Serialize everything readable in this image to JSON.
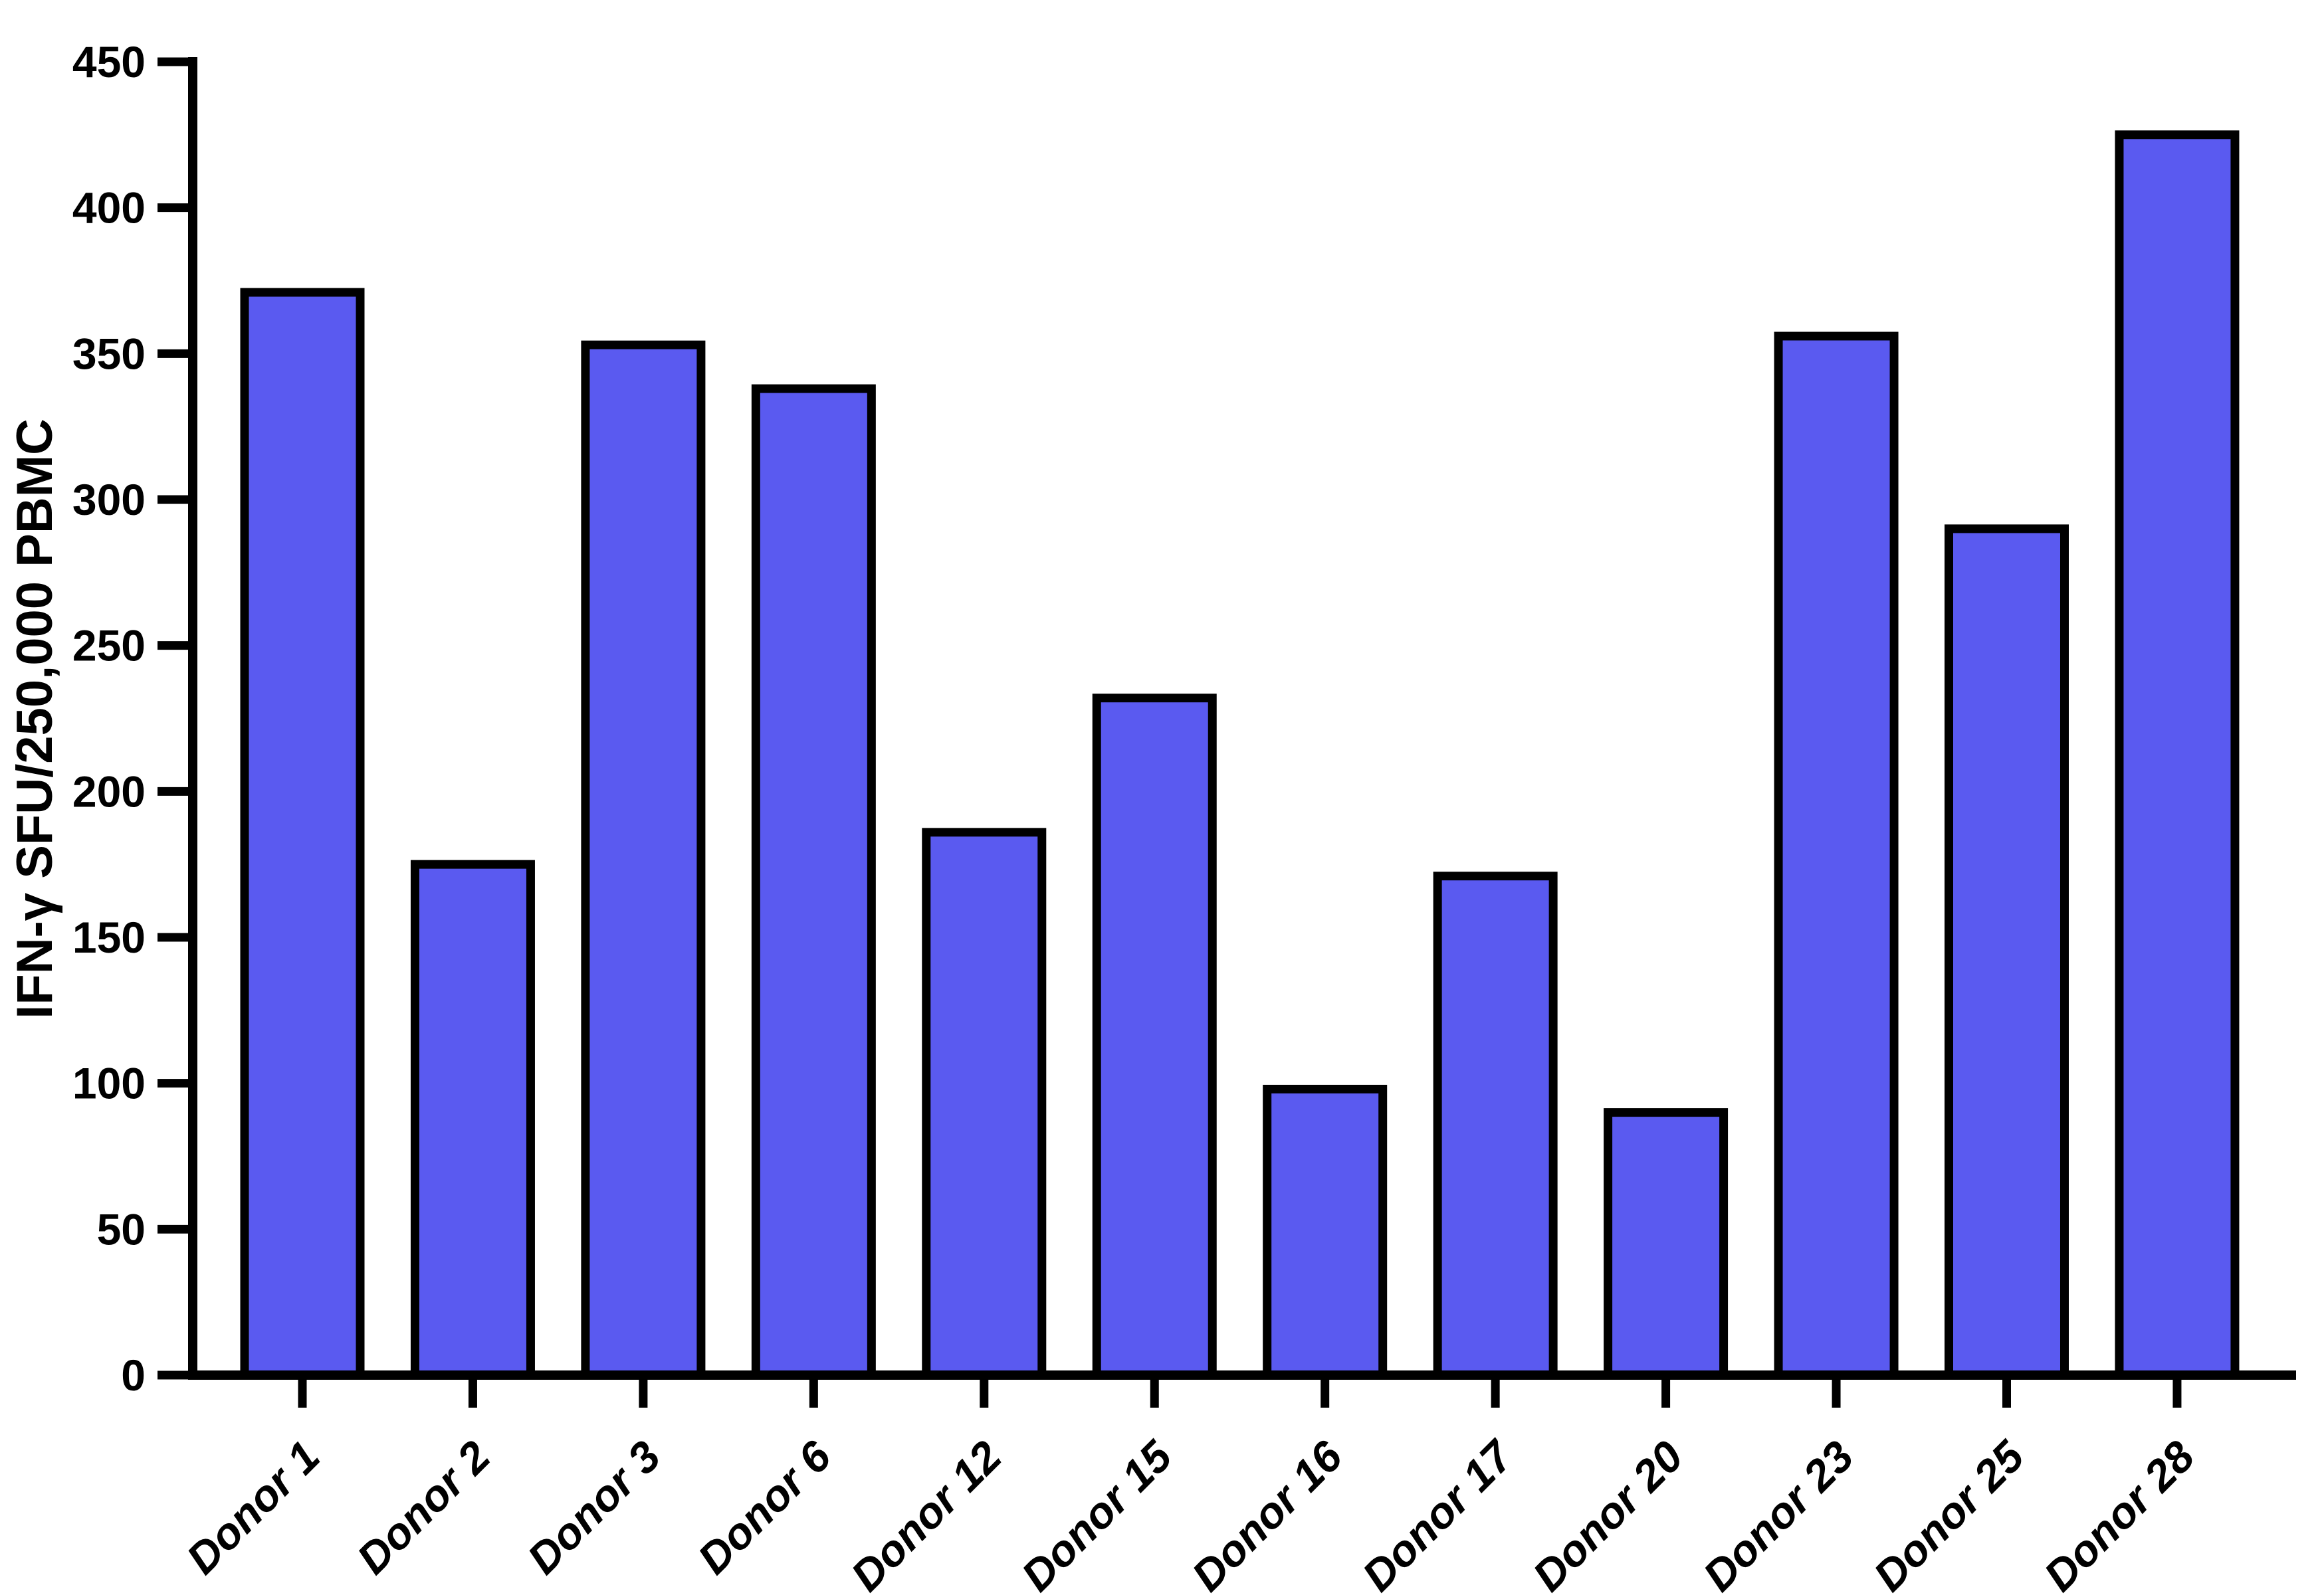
{
  "chart_data": {
    "type": "bar",
    "title": "",
    "categories": [
      "Donor 1",
      "Donor 2",
      "Donor 3",
      "Donor 6",
      "Donor 12",
      "Donor 15",
      "Donor 16",
      "Donor 17",
      "Donor 20",
      "Donor 23",
      "Donor 25",
      "Donor 28"
    ],
    "values": [
      371,
      175,
      353,
      338,
      186,
      232,
      98,
      171,
      90,
      356,
      290,
      425
    ],
    "xlabel": "",
    "ylabel": "IFN-γ SFU/250,000 PBMC",
    "ylim": [
      0,
      450
    ],
    "yticks": [
      0,
      50,
      100,
      150,
      200,
      250,
      300,
      350,
      400,
      450
    ],
    "grid": false,
    "legend": null,
    "colors": {
      "bar_fill": "#5A5AF0",
      "bar_stroke": "#000000",
      "axis": "#000000",
      "background": "#FFFFFF"
    }
  }
}
